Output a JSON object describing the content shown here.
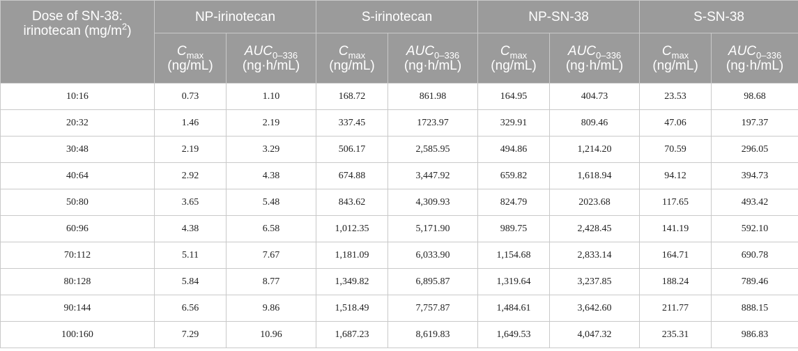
{
  "table": {
    "dose_header_line1": "Dose of SN-38:",
    "dose_header_line2": "irinotecan (mg/m",
    "dose_header_sup": "2",
    "dose_header_close": ")",
    "groups": [
      "NP-irinotecan",
      "S-irinotecan",
      "NP-SN-38",
      "S-SN-38"
    ],
    "cmax_symbol": "C",
    "cmax_sub": "max",
    "cmax_unit": "(ng/mL)",
    "auc_symbol": "AUC",
    "auc_sub": "0–336",
    "auc_unit": "(ng·h/mL)",
    "rows": [
      [
        "10:16",
        "0.73",
        "1.10",
        "168.72",
        "861.98",
        "164.95",
        "404.73",
        "23.53",
        "98.68"
      ],
      [
        "20:32",
        "1.46",
        "2.19",
        "337.45",
        "1723.97",
        "329.91",
        "809.46",
        "47.06",
        "197.37"
      ],
      [
        "30:48",
        "2.19",
        "3.29",
        "506.17",
        "2,585.95",
        "494.86",
        "1,214.20",
        "70.59",
        "296.05"
      ],
      [
        "40:64",
        "2.92",
        "4.38",
        "674.88",
        "3,447.92",
        "659.82",
        "1,618.94",
        "94.12",
        "394.73"
      ],
      [
        "50:80",
        "3.65",
        "5.48",
        "843.62",
        "4,309.93",
        "824.79",
        "2023.68",
        "117.65",
        "493.42"
      ],
      [
        "60:96",
        "4.38",
        "6.58",
        "1,012.35",
        "5,171.90",
        "989.75",
        "2,428.45",
        "141.19",
        "592.10"
      ],
      [
        "70:112",
        "5.11",
        "7.67",
        "1,181.09",
        "6,033.90",
        "1,154.68",
        "2,833.14",
        "164.71",
        "690.78"
      ],
      [
        "80:128",
        "5.84",
        "8.77",
        "1,349.82",
        "6,895.87",
        "1,319.64",
        "3,237.85",
        "188.24",
        "789.46"
      ],
      [
        "90:144",
        "6.56",
        "9.86",
        "1,518.49",
        "7,757.87",
        "1,484.61",
        "3,642.60",
        "211.77",
        "888.15"
      ],
      [
        "100:160",
        "7.29",
        "10.96",
        "1,687.23",
        "8,619.83",
        "1,649.53",
        "4,047.32",
        "235.31",
        "986.83"
      ]
    ]
  }
}
